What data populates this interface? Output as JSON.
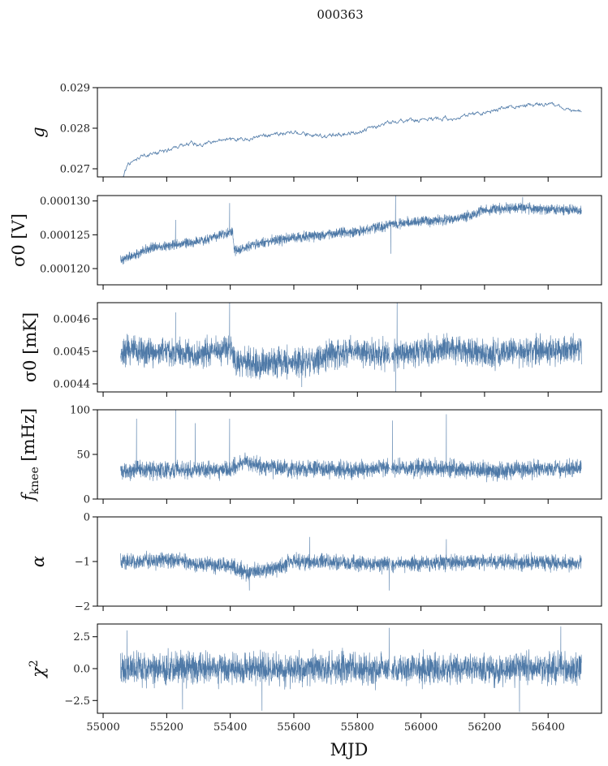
{
  "chart_data": {
    "type": "line",
    "title": "000363",
    "xlabel": "MJD",
    "xlim": [
      54982,
      56568
    ],
    "xticks": [
      55000,
      55200,
      55400,
      55600,
      55800,
      56000,
      56200,
      56400
    ],
    "xtick_labels": [
      "55000",
      "55200",
      "55400",
      "55600",
      "55800",
      "56000",
      "56200",
      "56400"
    ],
    "x_range": [
      55055,
      56505
    ],
    "color": "#4e79a7",
    "grid": false,
    "panels": [
      {
        "ylabel": "g",
        "ylim": [
          0.0268,
          0.029
        ],
        "yticks": [
          0.027,
          0.028,
          0.029
        ],
        "ytick_labels": [
          "0.027",
          "0.028",
          "0.029"
        ],
        "trend_x": [
          55055,
          55080,
          55120,
          55200,
          55280,
          55300,
          55400,
          55500,
          55600,
          55700,
          55800,
          55850,
          55900,
          56000,
          56100,
          56200,
          56300,
          56400,
          56505
        ],
        "trend_y": [
          0.0267,
          0.0271,
          0.0273,
          0.02745,
          0.02765,
          0.0276,
          0.0277,
          0.0278,
          0.0279,
          0.0278,
          0.0279,
          0.028,
          0.02815,
          0.0282,
          0.02825,
          0.0284,
          0.02855,
          0.0286,
          0.0284
        ],
        "noise": 5e-05,
        "spikes": []
      },
      {
        "ylabel": "σ0 [V]",
        "ylim": [
          0.0001176,
          0.0001308
        ],
        "yticks": [
          0.00012,
          0.000125,
          0.00013
        ],
        "ytick_labels": [
          "0.000120",
          "0.000125",
          "0.000130"
        ],
        "trend_x": [
          55055,
          55150,
          55300,
          55408,
          55412,
          55500,
          55600,
          55700,
          55800,
          55900,
          56000,
          56100,
          56150,
          56200,
          56300,
          56400,
          56505
        ],
        "trend_y": [
          0.0001212,
          0.000123,
          0.000124,
          0.0001255,
          0.0001226,
          0.0001238,
          0.0001246,
          0.000125,
          0.0001255,
          0.0001265,
          0.000127,
          0.0001272,
          0.0001278,
          0.0001286,
          0.000129,
          0.0001288,
          0.0001286
        ],
        "noise": 7e-07,
        "spikes": [
          [
            55228,
            0.0001272
          ],
          [
            55398,
            0.0001297
          ],
          [
            55920,
            0.0001312
          ],
          [
            55905,
            0.0001222
          ],
          [
            56320,
            0.0001306
          ]
        ]
      },
      {
        "ylabel": "σ0 [mK]",
        "ylim": [
          0.004375,
          0.00465
        ],
        "yticks": [
          0.0044,
          0.0045,
          0.0046
        ],
        "ytick_labels": [
          "0.0044",
          "0.0045",
          "0.0046"
        ],
        "trend_x": [
          55055,
          55200,
          55300,
          55400,
          55420,
          55500,
          55600,
          55640,
          55700,
          55800,
          55900,
          56000,
          56100,
          56200,
          56300,
          56400,
          56505
        ],
        "trend_y": [
          0.0045,
          0.0045,
          0.00449,
          0.00451,
          0.00447,
          0.00446,
          0.00447,
          0.00446,
          0.00449,
          0.0045,
          0.00449,
          0.0045,
          0.00451,
          0.00449,
          0.0045,
          0.0045,
          0.00451
        ],
        "noise": 4e-05,
        "spikes": [
          [
            55228,
            0.00462
          ],
          [
            55398,
            0.00465
          ],
          [
            55925,
            0.00465
          ],
          [
            55920,
            0.004375
          ],
          [
            55625,
            0.00439
          ]
        ]
      },
      {
        "ylabel": "f_knee [mHz]",
        "ylim": [
          0,
          100
        ],
        "yticks": [
          0,
          50,
          100
        ],
        "ytick_labels": [
          "0",
          "50",
          "100"
        ],
        "trend_x": [
          55055,
          55200,
          55400,
          55450,
          55500,
          55600,
          55800,
          55900,
          56000,
          56200,
          56400,
          56505
        ],
        "trend_y": [
          32,
          32,
          33,
          42,
          36,
          34,
          33,
          35,
          35,
          32,
          34,
          34
        ],
        "noise": 9,
        "spikes": [
          [
            55105,
            90
          ],
          [
            55228,
            100
          ],
          [
            55290,
            85
          ],
          [
            55398,
            90
          ],
          [
            56080,
            95
          ],
          [
            55910,
            88
          ]
        ]
      },
      {
        "ylabel": "α",
        "ylim": [
          -2,
          0
        ],
        "yticks": [
          -2,
          -1,
          0
        ],
        "ytick_labels": [
          "−2",
          "−1",
          "0"
        ],
        "trend_x": [
          55055,
          55200,
          55300,
          55400,
          55450,
          55550,
          55600,
          55800,
          56000,
          56200,
          56400,
          56505
        ],
        "trend_y": [
          -1.0,
          -0.97,
          -1.05,
          -1.1,
          -1.25,
          -1.15,
          -1.0,
          -1.05,
          -1.05,
          -1.0,
          -1.02,
          -1.05
        ],
        "noise": 0.16,
        "spikes": [
          [
            55650,
            -0.45
          ],
          [
            56080,
            -0.5
          ],
          [
            55900,
            -1.65
          ],
          [
            55460,
            -1.65
          ]
        ]
      },
      {
        "ylabel": "χ2",
        "ylim": [
          -3.5,
          3.5
        ],
        "yticks": [
          -2.5,
          0.0,
          2.5
        ],
        "ytick_labels": [
          "−2.5",
          "0.0",
          "2.5"
        ],
        "trend_x": [
          55055,
          56505
        ],
        "trend_y": [
          0,
          0
        ],
        "noise": 1.1,
        "spikes": [
          [
            55075,
            3.0
          ],
          [
            55500,
            -3.3
          ],
          [
            55900,
            3.2
          ],
          [
            56310,
            -3.4
          ],
          [
            56440,
            3.3
          ],
          [
            55250,
            -3.2
          ]
        ]
      }
    ]
  }
}
